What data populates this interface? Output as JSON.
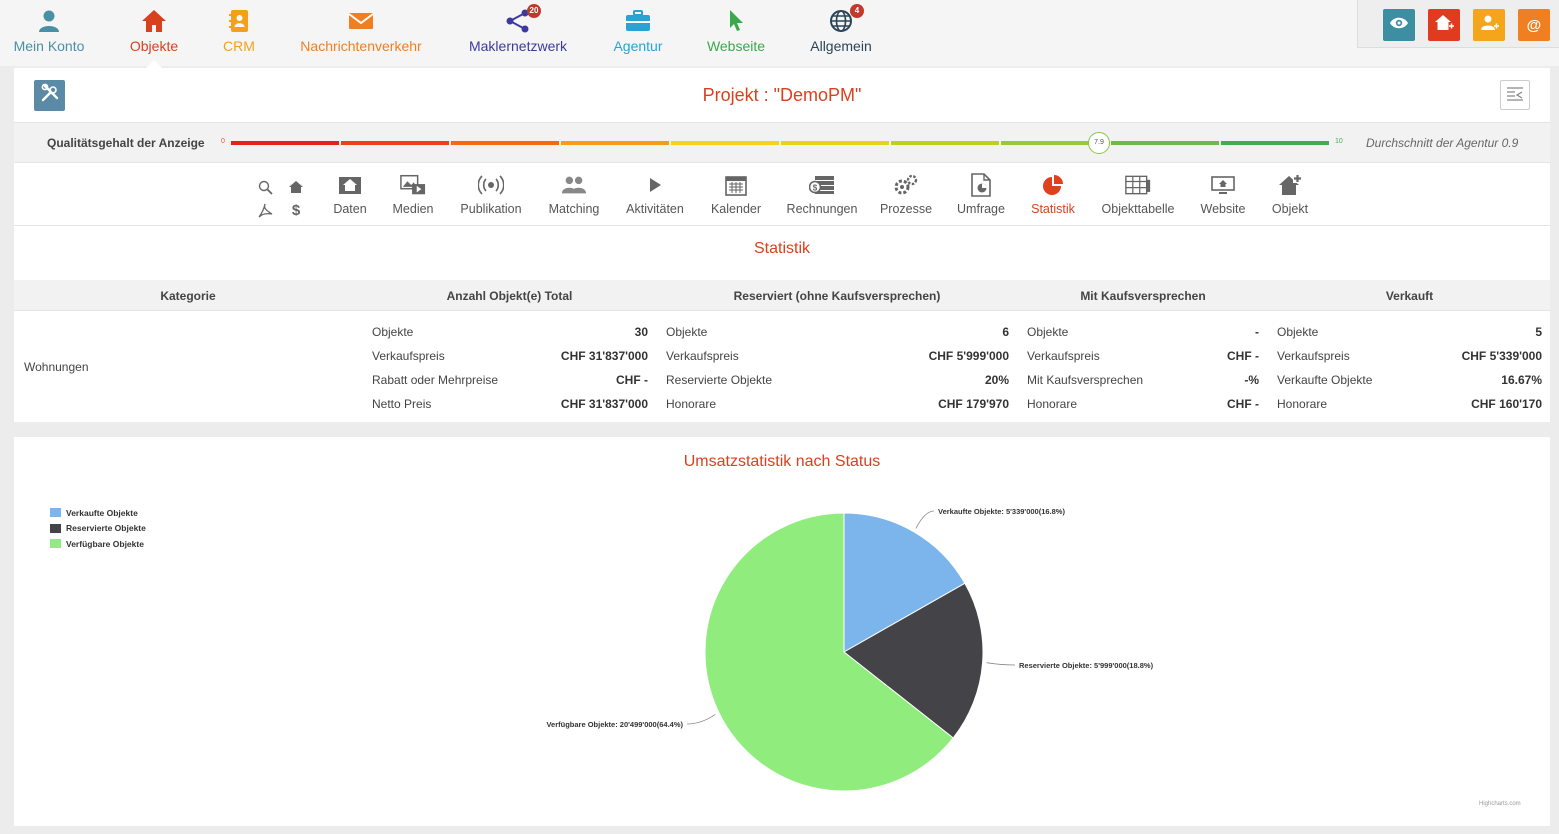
{
  "nav": {
    "items": [
      {
        "label": "Mein Konto",
        "color": "#4a90a4",
        "icon": "user-icon"
      },
      {
        "label": "Objekte",
        "color": "#d9411e",
        "icon": "house-icon",
        "active": true
      },
      {
        "label": "CRM",
        "color": "#f4a11a",
        "icon": "address-book-icon"
      },
      {
        "label": "Nachrichtenverkehr",
        "color": "#f07f22",
        "icon": "envelope-icon"
      },
      {
        "label": "Maklernetzwerk",
        "color": "#3c3aa0",
        "icon": "share-network-icon",
        "badge": "20"
      },
      {
        "label": "Agentur",
        "color": "#29a3d6",
        "icon": "briefcase-icon"
      },
      {
        "label": "Webseite",
        "color": "#3aa84c",
        "icon": "cursor-icon"
      },
      {
        "label": "Allgemein",
        "color": "#2c4455",
        "icon": "globe-icon",
        "badge": "4"
      }
    ]
  },
  "quick_actions": [
    {
      "icon": "eye-icon",
      "color": "#3d8ea3"
    },
    {
      "icon": "add-house-icon",
      "color": "#e03b1e"
    },
    {
      "icon": "add-user-icon",
      "color": "#f4a51a"
    },
    {
      "icon": "add-email-icon",
      "color": "#f07f22"
    }
  ],
  "project": {
    "title": "Projekt : \"DemoPM\""
  },
  "quality": {
    "label": "Qualitätsgehalt der Anzeige",
    "min": "0",
    "max": "10",
    "score": "7.9",
    "score_value": 7.9,
    "average": "Durchschnitt der Agentur 0.9",
    "segment_colors": [
      "#e8201a",
      "#ed4216",
      "#f36a12",
      "#f79c16",
      "#f7d11a",
      "#e3d51a",
      "#bcd11e",
      "#97c73a",
      "#6dbb46",
      "#3daf4f"
    ]
  },
  "tabs": [
    {
      "label": "Daten",
      "icon": "data-house-icon"
    },
    {
      "label": "Medien",
      "icon": "media-icon"
    },
    {
      "label": "Publikation",
      "icon": "broadcast-icon"
    },
    {
      "label": "Matching",
      "icon": "users-icon"
    },
    {
      "label": "Aktivitäten",
      "icon": "play-icon"
    },
    {
      "label": "Kalender",
      "icon": "calendar-icon"
    },
    {
      "label": "Rechnungen",
      "icon": "money-icon"
    },
    {
      "label": "Prozesse",
      "icon": "gears-icon"
    },
    {
      "label": "Umfrage",
      "icon": "survey-icon"
    },
    {
      "label": "Statistik",
      "icon": "pie-chart-icon",
      "active": true
    },
    {
      "label": "Objekttabelle",
      "icon": "table-icon"
    },
    {
      "label": "Website",
      "icon": "website-icon"
    },
    {
      "label": "Objekt",
      "icon": "add-object-icon"
    }
  ],
  "stats": {
    "title": "Statistik",
    "headers": [
      "Kategorie",
      "Anzahl Objekt(e) Total",
      "Reserviert (ohne Kaufsversprechen)",
      "Mit Kaufsversprechen",
      "Verkauft"
    ],
    "category": "Wohnungen",
    "groups": [
      {
        "rows": [
          [
            "Objekte",
            "30"
          ],
          [
            "Verkaufspreis",
            "CHF 31'837'000"
          ],
          [
            "Rabatt oder Mehrpreise",
            "CHF -"
          ],
          [
            "Netto Preis",
            "CHF 31'837'000"
          ]
        ]
      },
      {
        "rows": [
          [
            "Objekte",
            "6"
          ],
          [
            "Verkaufspreis",
            "CHF 5'999'000"
          ],
          [
            "Reservierte Objekte",
            "20%"
          ],
          [
            "Honorare",
            "CHF 179'970"
          ]
        ]
      },
      {
        "rows": [
          [
            "Objekte",
            "-"
          ],
          [
            "Verkaufspreis",
            "CHF -"
          ],
          [
            "Mit Kaufsversprechen",
            "-%"
          ],
          [
            "Honorare",
            "CHF -"
          ]
        ]
      },
      {
        "rows": [
          [
            "Objekte",
            "5"
          ],
          [
            "Verkaufspreis",
            "CHF 5'339'000"
          ],
          [
            "Verkaufte Objekte",
            "16.67%"
          ],
          [
            "Honorare",
            "CHF 160'170"
          ]
        ]
      }
    ]
  },
  "chart_data": {
    "type": "pie",
    "title": "Umsatzstatistik nach Status",
    "legend_position": "top-left",
    "series": [
      {
        "name": "Verkaufte Objekte",
        "value": 5339000,
        "label": "Verkaufte Objekte: 5'339'000(16.8%)",
        "color": "#7cb5ec"
      },
      {
        "name": "Reservierte Objekte",
        "value": 5999000,
        "label": "Reservierte Objekte: 5'999'000(18.8%)",
        "color": "#434348"
      },
      {
        "name": "Verfügbare Objekte",
        "value": 20499000,
        "label": "Verfügbare Objekte: 20'499'000(64.4%)",
        "color": "#90ed7d"
      }
    ],
    "credits": "Highcharts.com"
  }
}
